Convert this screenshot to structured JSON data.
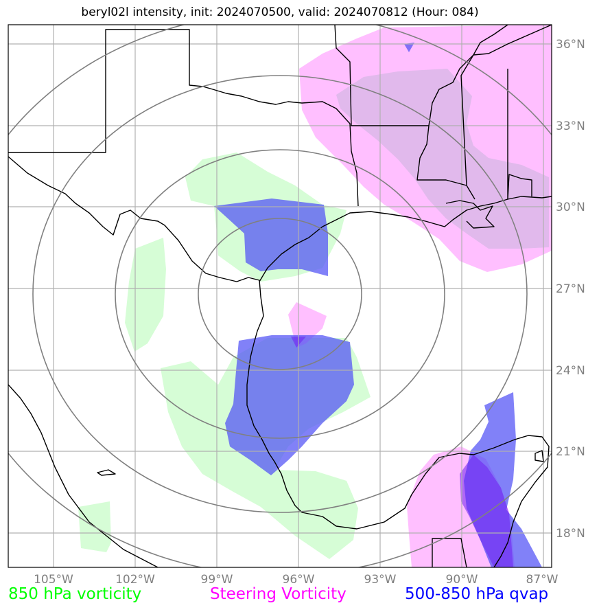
{
  "title": "beryl02l intensity, init: 2024070500, valid: 2024070812 (Hour: 084)",
  "lon_ticks": [
    "105°W",
    "102°W",
    "99°W",
    "96°W",
    "93°W",
    "90°W",
    "87°W"
  ],
  "lat_ticks": [
    "36°N",
    "33°N",
    "30°N",
    "27°N",
    "24°N",
    "21°N",
    "18°N"
  ],
  "legend": {
    "vort850": {
      "label": "850 hPa vorticity",
      "color": "#00ff00"
    },
    "steering": {
      "label": "Steering Vorticity",
      "color": "#ff00ff"
    },
    "qvap": {
      "label": "500-850 hPa qvap",
      "color": "#0000ff"
    }
  },
  "map": {
    "extent_lon": [
      -106.6,
      -86.7
    ],
    "extent_lat": [
      16.7,
      36.7
    ],
    "center": {
      "lon": -96.3,
      "lat": 27.0
    },
    "range_rings": 4,
    "colors": {
      "vort850_fill": "#c8fcc8",
      "steering_fill": "#ff9cff",
      "qvap_fill": "#5050f5",
      "rings": "#808080",
      "grid": "#b0b0b0",
      "coast": "#000000"
    }
  }
}
